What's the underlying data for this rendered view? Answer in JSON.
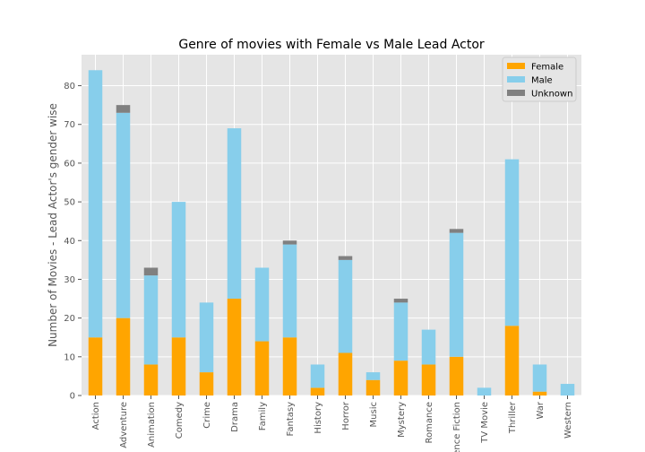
{
  "chart_data": {
    "type": "bar",
    "stacked": true,
    "title": "Genre of movies with Female vs Male Lead Actor",
    "xlabel": "",
    "ylabel": "Number of Movies - Lead Actor's gender wise",
    "ylim": [
      0,
      88
    ],
    "yticks": [
      0,
      10,
      20,
      30,
      40,
      50,
      60,
      70,
      80
    ],
    "grid": true,
    "legend_position": "top-right",
    "categories": [
      "Action",
      "Adventure",
      "Animation",
      "Comedy",
      "Crime",
      "Drama",
      "Family",
      "Fantasy",
      "History",
      "Horror",
      "Music",
      "Mystery",
      "Romance",
      "Science Fiction",
      "TV Movie",
      "Thriller",
      "War",
      "Western"
    ],
    "series": [
      {
        "name": "Female",
        "color": "#ffa500",
        "values": [
          15,
          20,
          8,
          15,
          6,
          25,
          14,
          15,
          2,
          11,
          4,
          9,
          8,
          10,
          0,
          18,
          1,
          0
        ]
      },
      {
        "name": "Male",
        "color": "#87ceeb",
        "values": [
          69,
          53,
          23,
          35,
          18,
          44,
          19,
          24,
          6,
          24,
          2,
          15,
          9,
          32,
          2,
          43,
          7,
          3
        ]
      },
      {
        "name": "Unknown",
        "color": "#808080",
        "values": [
          0,
          2,
          2,
          0,
          0,
          0,
          0,
          1,
          0,
          1,
          0,
          1,
          0,
          1,
          0,
          0,
          0,
          0
        ]
      }
    ]
  }
}
